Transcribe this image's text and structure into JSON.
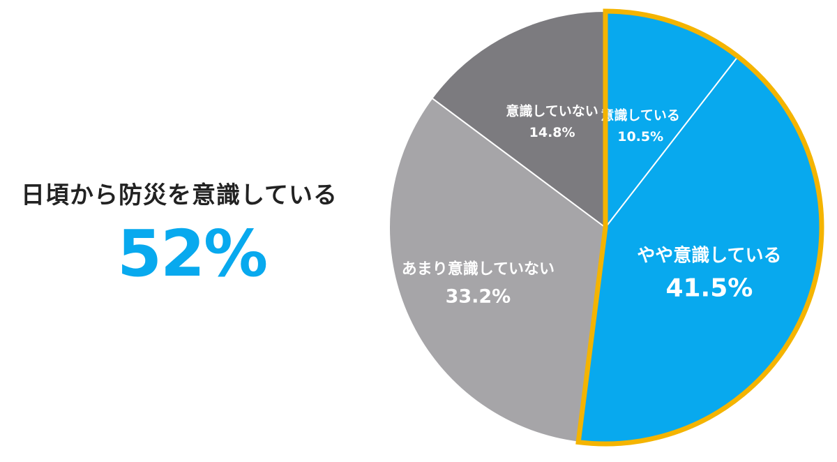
{
  "headline": "日頃から防災を意識している",
  "highlight_value": "52%",
  "colors": {
    "accent_blue": "#08A9EE",
    "highlight_border": "#F4B400",
    "gray_light": "#A6A5A8",
    "gray_dark": "#7C7B7F",
    "headline_text": "#222222"
  },
  "chart_data": {
    "type": "pie",
    "start": "12 o'clock",
    "direction": "clockwise",
    "slices": [
      {
        "label": "意識している",
        "value": 10.5,
        "value_label": "10.5%",
        "color": "#08A9EE",
        "highlighted": true
      },
      {
        "label": "やや意識している",
        "value": 41.5,
        "value_label": "41.5%",
        "color": "#08A9EE",
        "highlighted": true
      },
      {
        "label": "あまり意識していない",
        "value": 33.2,
        "value_label": "33.2%",
        "color": "#A6A5A8",
        "highlighted": false
      },
      {
        "label": "意識していない",
        "value": 14.8,
        "value_label": "14.8%",
        "color": "#7C7B7F",
        "highlighted": false
      }
    ]
  }
}
